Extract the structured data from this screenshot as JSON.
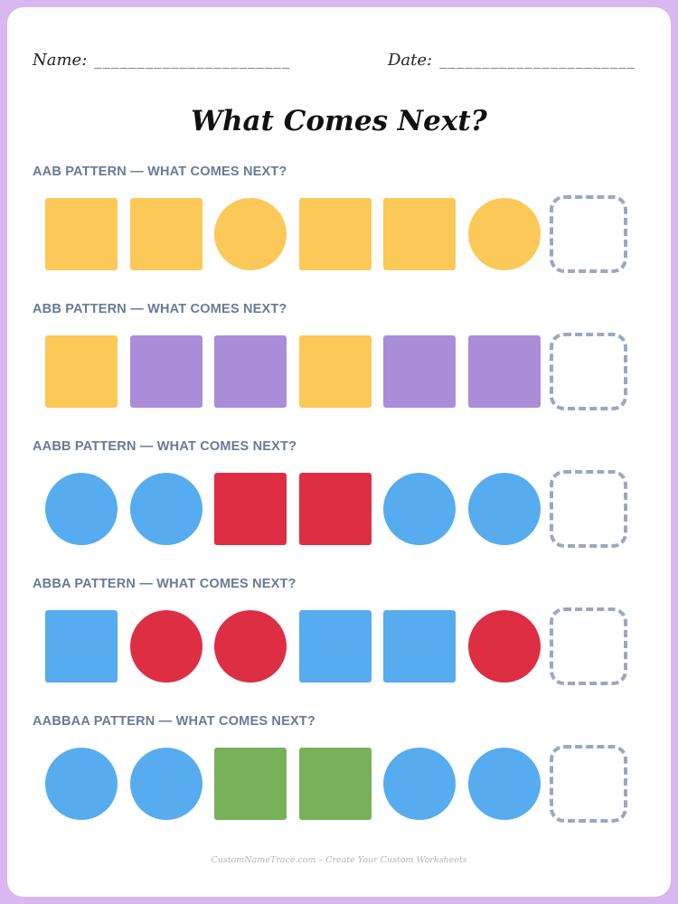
{
  "header": {
    "name_label": "Name:",
    "name_line": "_______________________",
    "date_label": "Date:",
    "date_line": "_______________________"
  },
  "title": "What Comes Next?",
  "colors": {
    "yellow": "#fcc858",
    "purple": "#a98dd8",
    "blue": "#56acee",
    "red": "#dd2e44",
    "green": "#78b159",
    "blank_border": "#9aa8bf"
  },
  "patterns": [
    {
      "label": "AAB PATTERN — WHAT COMES NEXT?",
      "shapes": [
        {
          "shape": "square",
          "color": "yellow"
        },
        {
          "shape": "square",
          "color": "yellow"
        },
        {
          "shape": "circle",
          "color": "yellow"
        },
        {
          "shape": "square",
          "color": "yellow"
        },
        {
          "shape": "square",
          "color": "yellow"
        },
        {
          "shape": "circle",
          "color": "yellow"
        },
        {
          "shape": "blank"
        }
      ]
    },
    {
      "label": "ABB PATTERN — WHAT COMES NEXT?",
      "shapes": [
        {
          "shape": "square",
          "color": "yellow"
        },
        {
          "shape": "square",
          "color": "purple"
        },
        {
          "shape": "square",
          "color": "purple"
        },
        {
          "shape": "square",
          "color": "yellow"
        },
        {
          "shape": "square",
          "color": "purple"
        },
        {
          "shape": "square",
          "color": "purple"
        },
        {
          "shape": "blank"
        }
      ]
    },
    {
      "label": "AABB PATTERN — WHAT COMES NEXT?",
      "shapes": [
        {
          "shape": "circle",
          "color": "blue"
        },
        {
          "shape": "circle",
          "color": "blue"
        },
        {
          "shape": "square",
          "color": "red"
        },
        {
          "shape": "square",
          "color": "red"
        },
        {
          "shape": "circle",
          "color": "blue"
        },
        {
          "shape": "circle",
          "color": "blue"
        },
        {
          "shape": "blank"
        }
      ]
    },
    {
      "label": "ABBA PATTERN — WHAT COMES NEXT?",
      "shapes": [
        {
          "shape": "square",
          "color": "blue"
        },
        {
          "shape": "circle",
          "color": "red"
        },
        {
          "shape": "circle",
          "color": "red"
        },
        {
          "shape": "square",
          "color": "blue"
        },
        {
          "shape": "square",
          "color": "blue"
        },
        {
          "shape": "circle",
          "color": "red"
        },
        {
          "shape": "blank"
        }
      ]
    },
    {
      "label": "AABBAA PATTERN — WHAT COMES NEXT?",
      "shapes": [
        {
          "shape": "circle",
          "color": "blue"
        },
        {
          "shape": "circle",
          "color": "blue"
        },
        {
          "shape": "square",
          "color": "green"
        },
        {
          "shape": "square",
          "color": "green"
        },
        {
          "shape": "circle",
          "color": "blue"
        },
        {
          "shape": "circle",
          "color": "blue"
        },
        {
          "shape": "blank"
        }
      ]
    }
  ],
  "footer": "CustomNameTrace.com – Create Your Custom Worksheets"
}
